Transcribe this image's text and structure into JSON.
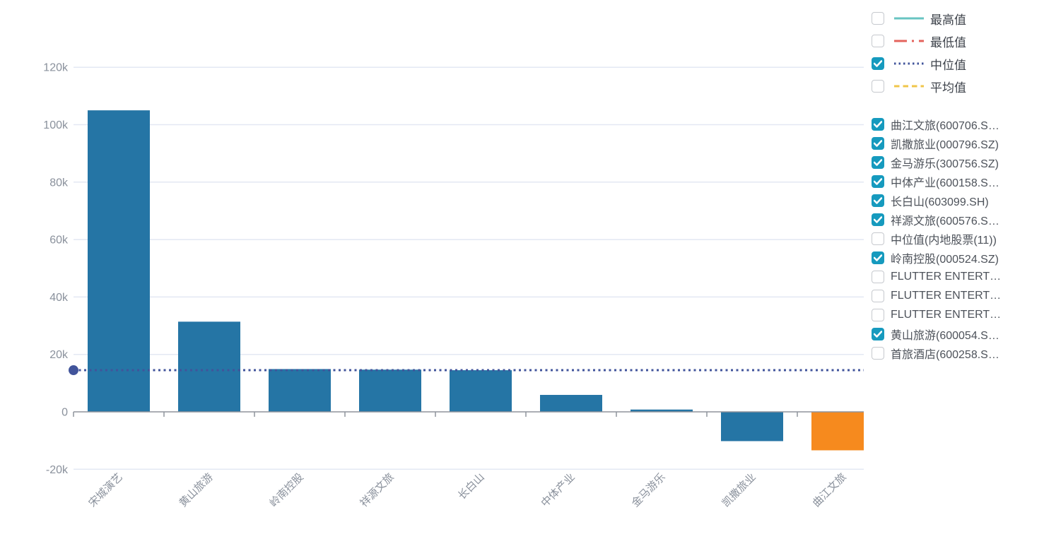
{
  "chart_data": {
    "type": "bar",
    "title": "",
    "xlabel": "",
    "ylabel": "",
    "categories": [
      "宋城演艺",
      "黄山旅游",
      "岭南控股",
      "祥源文旅",
      "长白山",
      "中体产业",
      "金马游乐",
      "凯撒旅业",
      "曲江文旅"
    ],
    "values": [
      105000,
      31400,
      14900,
      14700,
      14500,
      5900,
      800,
      -10200,
      -13400
    ],
    "bar_colors": [
      "#2575a5",
      "#2575a5",
      "#2575a5",
      "#2575a5",
      "#2575a5",
      "#2575a5",
      "#2575a5",
      "#2575a5",
      "#f68a1e"
    ],
    "median_line": {
      "label": "中位值",
      "value": 14500,
      "color": "#41549b",
      "style": "dotted"
    },
    "ylim": [
      -20000,
      120000
    ],
    "ytick_step": 20000,
    "ytick_labels": [
      "-20k",
      "0",
      "20k",
      "40k",
      "60k",
      "80k",
      "100k",
      "120k"
    ],
    "grid": true,
    "legend_position": "top-right"
  },
  "legend": {
    "items": [
      {
        "label": "最高值",
        "checked": false,
        "line_color": "#68c4c2",
        "line_style": "solid"
      },
      {
        "label": "最低值",
        "checked": false,
        "line_color": "#e4635c",
        "line_style": "dash-dot"
      },
      {
        "label": "中位值",
        "checked": true,
        "line_color": "#41549b",
        "line_style": "dotted"
      },
      {
        "label": "平均值",
        "checked": false,
        "line_color": "#f0c64a",
        "line_style": "dashed"
      }
    ]
  },
  "series_list": {
    "items": [
      {
        "label": "曲江文旅(600706.S…",
        "checked": true
      },
      {
        "label": "凯撒旅业(000796.SZ)",
        "checked": true
      },
      {
        "label": "金马游乐(300756.SZ)",
        "checked": true
      },
      {
        "label": "中体产业(600158.S…",
        "checked": true
      },
      {
        "label": "长白山(603099.SH)",
        "checked": true
      },
      {
        "label": "祥源文旅(600576.S…",
        "checked": true
      },
      {
        "label": "中位值(内地股票(11))",
        "checked": false
      },
      {
        "label": "岭南控股(000524.SZ)",
        "checked": true
      },
      {
        "label": "FLUTTER ENTERT…",
        "checked": false
      },
      {
        "label": "FLUTTER ENTERT…",
        "checked": false
      },
      {
        "label": "FLUTTER ENTERT…",
        "checked": false
      },
      {
        "label": "黄山旅游(600054.S…",
        "checked": true
      },
      {
        "label": "首旅酒店(600258.S…",
        "checked": false
      }
    ]
  },
  "colors": {
    "bar_default": "#2575a5",
    "bar_highlight": "#f68a1e",
    "median": "#41549b",
    "checkbox_checked": "#169abe",
    "gridline": "#e3e8f3",
    "axis": "#8f949c",
    "axis_text": "#8a919c"
  }
}
